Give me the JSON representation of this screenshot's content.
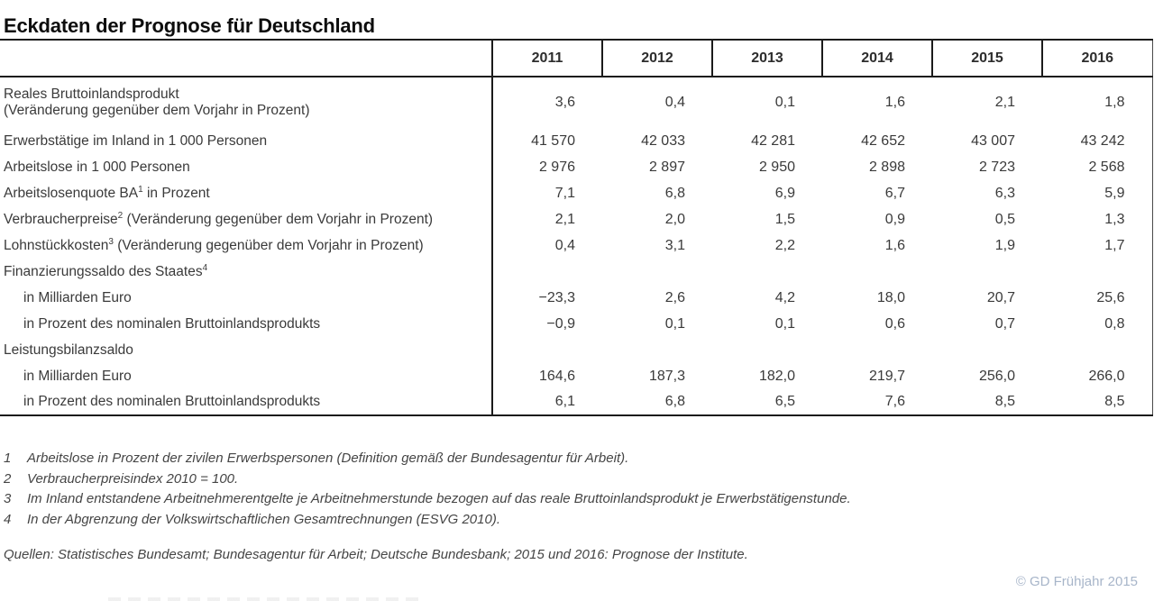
{
  "title": "Eckdaten der Prognose für Deutschland",
  "table": {
    "year_headers": [
      "2011",
      "2012",
      "2013",
      "2014",
      "2015",
      "2016"
    ],
    "rows": [
      {
        "label": "Reales Bruttoinlandsprodukt",
        "label2": "(Veränderung gegenüber dem Vorjahr in Prozent)",
        "tall": true,
        "values": [
          "3,6",
          "0,4",
          "0,1",
          "1,6",
          "2,1",
          "1,8"
        ]
      },
      {
        "label": "Erwerbstätige im Inland in 1 000 Personen",
        "values": [
          "41 570",
          "42 033",
          "42 281",
          "42 652",
          "43 007",
          "43 242"
        ]
      },
      {
        "label": "Arbeitslose in 1 000 Personen",
        "values": [
          "2 976",
          "2 897",
          "2 950",
          "2 898",
          "2 723",
          "2 568"
        ]
      },
      {
        "label": "Arbeitslosenquote BA",
        "sup": "1",
        "label_after": " in Prozent",
        "values": [
          "7,1",
          "6,8",
          "6,9",
          "6,7",
          "6,3",
          "5,9"
        ]
      },
      {
        "label": "Verbraucherpreise",
        "sup": "2",
        "label_after": " (Veränderung gegenüber dem Vorjahr in Prozent)",
        "values": [
          "2,1",
          "2,0",
          "1,5",
          "0,9",
          "0,5",
          "1,3"
        ]
      },
      {
        "label": "Lohnstückkosten",
        "sup": "3",
        "label_after": " (Veränderung gegenüber dem Vorjahr in Prozent)",
        "values": [
          "0,4",
          "3,1",
          "2,2",
          "1,6",
          "1,9",
          "1,7"
        ]
      },
      {
        "label": "Finanzierungssaldo des Staates",
        "sup": "4",
        "values": [
          "",
          "",
          "",
          "",
          "",
          ""
        ]
      },
      {
        "label": "in Milliarden Euro",
        "indent": true,
        "values": [
          "−23,3",
          "2,6",
          "4,2",
          "18,0",
          "20,7",
          "25,6"
        ]
      },
      {
        "label": "in Prozent des nominalen Bruttoinlandsprodukts",
        "indent": true,
        "values": [
          "−0,9",
          "0,1",
          "0,1",
          "0,6",
          "0,7",
          "0,8"
        ]
      },
      {
        "label": "Leistungsbilanzsaldo",
        "values": [
          "",
          "",
          "",
          "",
          "",
          ""
        ]
      },
      {
        "label": "in Milliarden Euro",
        "indent": true,
        "values": [
          "164,6",
          "187,3",
          "182,0",
          "219,7",
          "256,0",
          "266,0"
        ]
      },
      {
        "label": "in Prozent des nominalen Bruttoinlandsprodukts",
        "indent": true,
        "values": [
          "6,1",
          "6,8",
          "6,5",
          "7,6",
          "8,5",
          "8,5"
        ]
      }
    ]
  },
  "footnotes": [
    {
      "num": "1",
      "text": "Arbeitslose in Prozent der zivilen Erwerbspersonen (Definition gemäß der Bundesagentur für Arbeit)."
    },
    {
      "num": "2",
      "text": "Verbraucherpreisindex 2010 = 100."
    },
    {
      "num": "3",
      "text": "Im Inland entstandene Arbeitnehmerentgelte je Arbeitnehmerstunde bezogen auf das reale Bruttoinlandsprodukt je Erwerbstätigenstunde."
    },
    {
      "num": "4",
      "text": "In der Abgrenzung der Volkswirtschaftlichen Gesamtrechnungen (ESVG 2010)."
    }
  ],
  "sources": "Quellen: Statistisches Bundesamt; Bundesagentur für Arbeit; Deutsche Bundesbank; 2015 und 2016: Prognose der Institute.",
  "credit": "© GD Frühjahr 2015",
  "colors": {
    "text": "#3a3a3a",
    "border": "#1b1b1b",
    "credit": "#a7b5c9"
  },
  "chart_data": {
    "type": "table",
    "title": "Eckdaten der Prognose für Deutschland",
    "columns": [
      "2011",
      "2012",
      "2013",
      "2014",
      "2015",
      "2016"
    ],
    "series": [
      {
        "name": "Reales Bruttoinlandsprodukt (Veränderung gegenüber dem Vorjahr in Prozent)",
        "values": [
          3.6,
          0.4,
          0.1,
          1.6,
          2.1,
          1.8
        ]
      },
      {
        "name": "Erwerbstätige im Inland in 1 000 Personen",
        "values": [
          41570,
          42033,
          42281,
          42652,
          43007,
          43242
        ]
      },
      {
        "name": "Arbeitslose in 1 000 Personen",
        "values": [
          2976,
          2897,
          2950,
          2898,
          2723,
          2568
        ]
      },
      {
        "name": "Arbeitslosenquote BA in Prozent",
        "values": [
          7.1,
          6.8,
          6.9,
          6.7,
          6.3,
          5.9
        ]
      },
      {
        "name": "Verbraucherpreise (Veränderung gegenüber dem Vorjahr in Prozent)",
        "values": [
          2.1,
          2.0,
          1.5,
          0.9,
          0.5,
          1.3
        ]
      },
      {
        "name": "Lohnstückkosten (Veränderung gegenüber dem Vorjahr in Prozent)",
        "values": [
          0.4,
          3.1,
          2.2,
          1.6,
          1.9,
          1.7
        ]
      },
      {
        "name": "Finanzierungssaldo des Staates in Milliarden Euro",
        "values": [
          -23.3,
          2.6,
          4.2,
          18.0,
          20.7,
          25.6
        ]
      },
      {
        "name": "Finanzierungssaldo des Staates in Prozent des nominalen Bruttoinlandsprodukts",
        "values": [
          -0.9,
          0.1,
          0.1,
          0.6,
          0.7,
          0.8
        ]
      },
      {
        "name": "Leistungsbilanzsaldo in Milliarden Euro",
        "values": [
          164.6,
          187.3,
          182.0,
          219.7,
          256.0,
          266.0
        ]
      },
      {
        "name": "Leistungsbilanzsaldo in Prozent des nominalen Bruttoinlandsprodukts",
        "values": [
          6.1,
          6.8,
          6.5,
          7.6,
          8.5,
          8.5
        ]
      }
    ]
  }
}
